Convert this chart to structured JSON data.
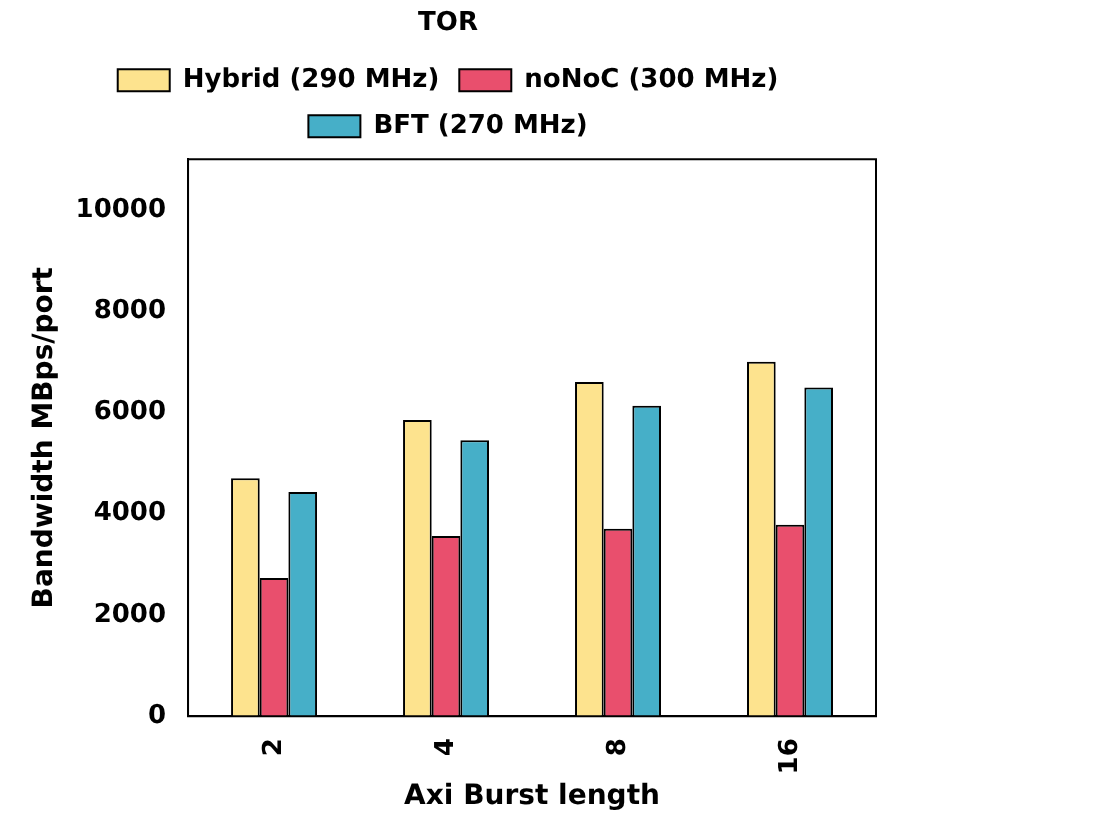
{
  "chart_data": {
    "type": "bar",
    "title": "TOR",
    "xlabel": "Axi Burst length",
    "ylabel": "Bandwidth MBps/port",
    "categories": [
      "2",
      "4",
      "8",
      "16"
    ],
    "series": [
      {
        "name": "Hybrid (290 MHz)",
        "color": "#fde38e",
        "values": [
          4700,
          5850,
          6600,
          7000
        ]
      },
      {
        "name": "noNoC (300 MHz)",
        "color": "#e94f6d",
        "values": [
          2730,
          3560,
          3700,
          3780
        ]
      },
      {
        "name": "BFT (270 MHz)",
        "color": "#46afc8",
        "values": [
          4430,
          5450,
          6130,
          6490
        ]
      }
    ],
    "ylim": [
      0,
      11000
    ],
    "yticks": [
      0,
      2000,
      4000,
      6000,
      8000,
      10000
    ],
    "grid": false,
    "legend": "top"
  }
}
